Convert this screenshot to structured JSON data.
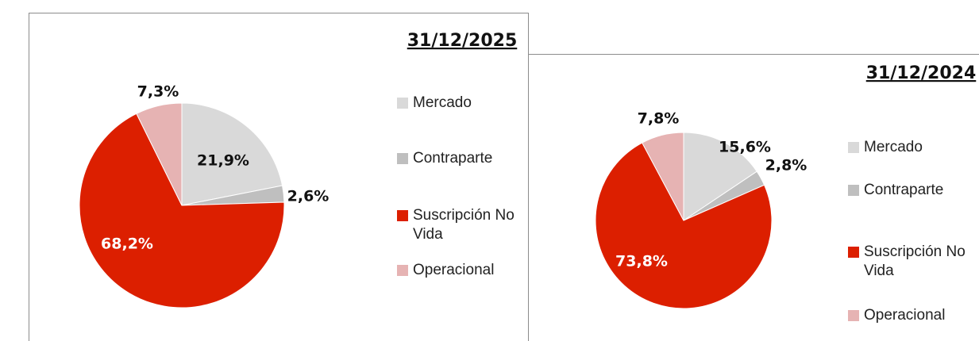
{
  "chart_data": [
    {
      "type": "pie",
      "title": "31/12/2025",
      "categories": [
        "Mercado",
        "Contraparte",
        "Suscripción No Vida",
        "Operacional"
      ],
      "values": [
        21.9,
        2.6,
        68.2,
        7.3
      ],
      "value_labels": [
        "21,9%",
        "2,6%",
        "68,2%",
        "7,3%"
      ],
      "colors": [
        "#d9d9d9",
        "#bfbfbf",
        "#dc1f00",
        "#e6b3b3"
      ]
    },
    {
      "type": "pie",
      "title": "31/12/2024",
      "categories": [
        "Mercado",
        "Contraparte",
        "Suscripción No Vida",
        "Operacional"
      ],
      "values": [
        15.6,
        2.8,
        73.8,
        7.8
      ],
      "value_labels": [
        "15,6%",
        "2,8%",
        "73,8%",
        "7,8%"
      ],
      "colors": [
        "#d9d9d9",
        "#bfbfbf",
        "#dc1f00",
        "#e6b3b3"
      ]
    }
  ]
}
